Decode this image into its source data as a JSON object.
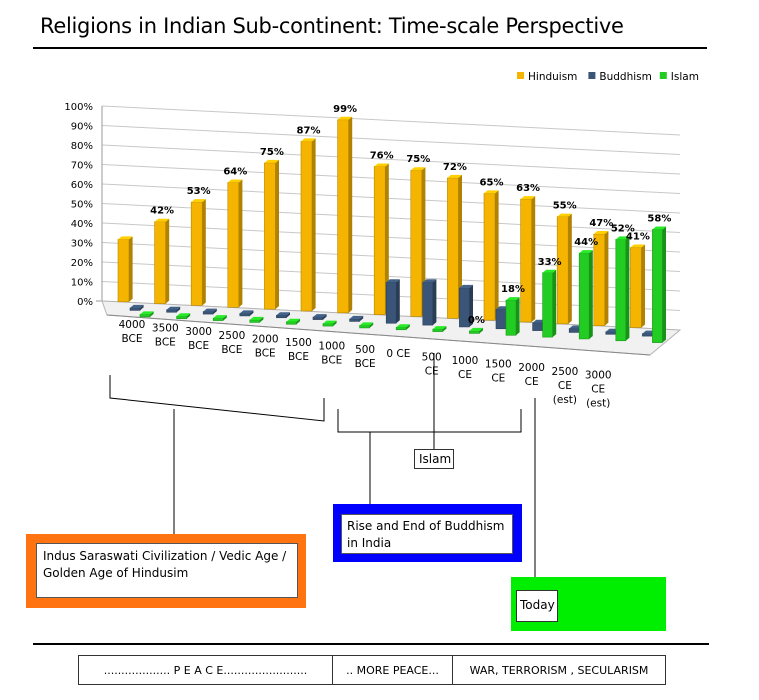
{
  "title": "Religions in Indian Sub-continent: Time-scale Perspective",
  "colors": {
    "hinduism": "#f5b400",
    "buddhism": "#3a5578",
    "islam": "#22cc22"
  },
  "chart_data": {
    "type": "bar",
    "title": "",
    "xlabel": "",
    "ylabel": "",
    "ylim": [
      0,
      100
    ],
    "y_ticks": [
      "0%",
      "10%",
      "20%",
      "30%",
      "40%",
      "50%",
      "60%",
      "70%",
      "80%",
      "90%",
      "100%"
    ],
    "legend_position": "top-right",
    "categories": [
      [
        "4000",
        "BCE"
      ],
      [
        "3500",
        "BCE"
      ],
      [
        "3000",
        "BCE"
      ],
      [
        "2500",
        "BCE"
      ],
      [
        "2000",
        "BCE"
      ],
      [
        "1500",
        "BCE"
      ],
      [
        "1000",
        "BCE"
      ],
      [
        "500",
        "BCE"
      ],
      [
        "0 CE"
      ],
      [
        "500",
        "CE"
      ],
      [
        "1000",
        "CE"
      ],
      [
        "1500",
        "CE"
      ],
      [
        "2000",
        "CE"
      ],
      [
        "2500",
        "CE",
        "(est)"
      ],
      [
        "3000",
        "CE",
        "(est)"
      ]
    ],
    "series": [
      {
        "name": "Hinduism",
        "color": "#f5b400",
        "values": [
          32,
          42,
          53,
          64,
          75,
          87,
          99,
          76,
          75,
          72,
          65,
          63,
          55,
          47,
          41
        ],
        "labels": [
          "",
          "42%",
          "53%",
          "64%",
          "75%",
          "87%",
          "99%",
          "76%",
          "75%",
          "72%",
          "65%",
          "63%",
          "55%",
          "47%",
          "41%"
        ]
      },
      {
        "name": "Buddhism",
        "color": "#3a5578",
        "values": [
          1,
          1,
          1,
          1,
          1,
          1,
          1,
          21,
          22,
          20,
          10,
          4,
          2,
          1,
          1
        ],
        "labels": [
          "",
          "",
          "",
          "",
          "",
          "",
          "",
          "",
          "",
          "",
          "",
          "",
          "",
          "",
          ""
        ]
      },
      {
        "name": "Islam",
        "color": "#22cc22",
        "values": [
          0,
          0,
          0,
          0,
          0,
          0,
          0,
          0,
          0,
          0,
          18,
          33,
          44,
          52,
          58
        ],
        "labels": [
          "",
          "",
          "",
          "",
          "",
          "",
          "",
          "",
          "",
          "0%",
          "18%",
          "33%",
          "44%",
          "52%",
          "58%"
        ]
      }
    ]
  },
  "annotations": {
    "islam": "Islam",
    "indus": "Indus Saraswati Civilization / Vedic Age / Golden Age of Hindusim",
    "buddhism": "Rise  and End of Buddhism in India",
    "today": "Today"
  },
  "eras": {
    "peace": "................... P E A C E........................",
    "more_peace": ".. MORE PEACE...",
    "war": "WAR, TERRORISM , SECULARISM"
  }
}
